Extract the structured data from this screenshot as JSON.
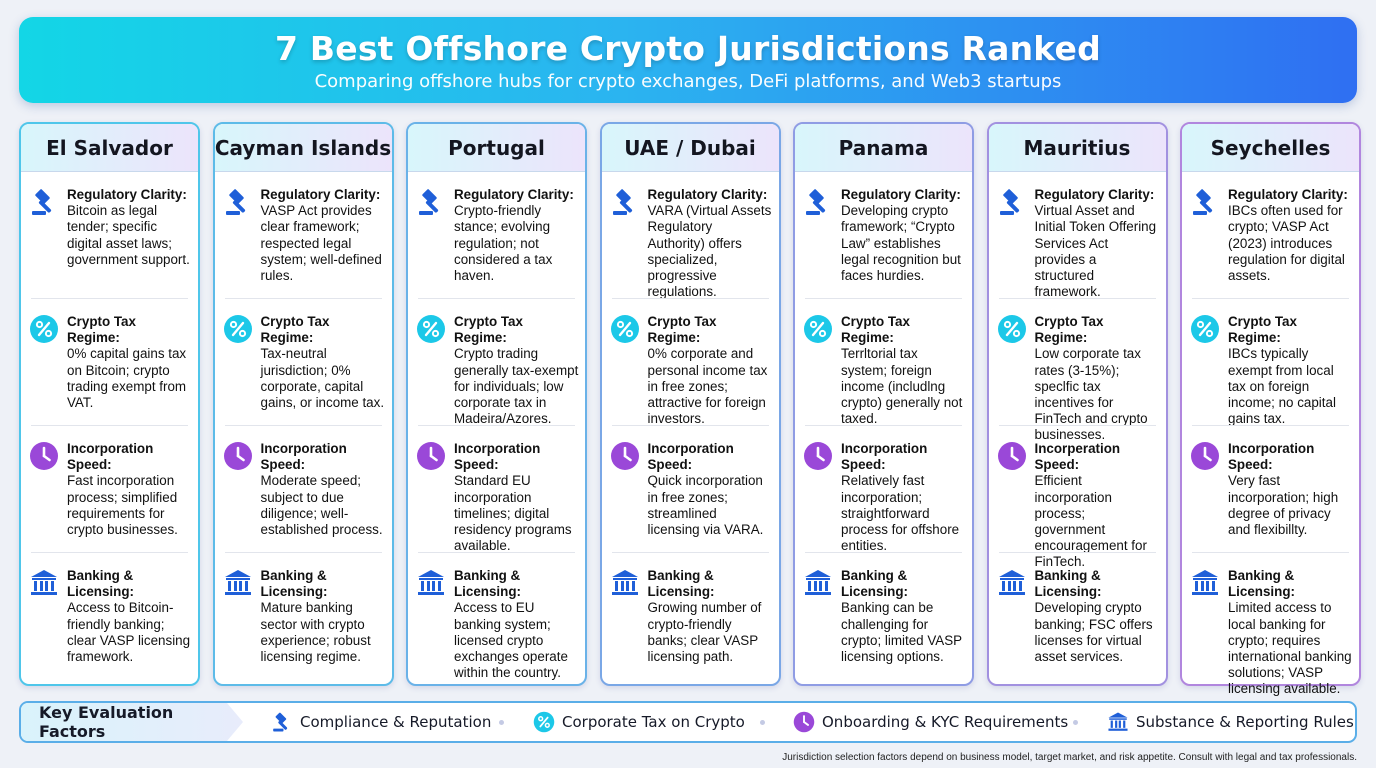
{
  "header": {
    "title": "7 Best Offshore Crypto Jurisdictions Ranked",
    "subtitle": "Comparing offshore hubs for crypto exchanges, DeFi platforms, and Web3 startups"
  },
  "jurisdictions": [
    {
      "name": "El Salvador",
      "sections": [
        {
          "heading": "Regulatory Clarity:",
          "body": "Bitcoin as legal tender; specific digital asset laws; government support.",
          "icon": "gavel-icon"
        },
        {
          "heading": "Crypto Tax Regime:",
          "body": "0% capital gains tax on Bitcoin; crypto trading exempt from VAT.",
          "icon": "percent-icon"
        },
        {
          "heading": "Incorporation Speed:",
          "body": "Fast incorporation process; simplified requirements for crypto businesses.",
          "icon": "clock-icon"
        },
        {
          "heading": "Banking & Licensing:",
          "body": "Access to Bitcoin-friendly banking; clear VASP licensing framework.",
          "icon": "bank-icon"
        }
      ]
    },
    {
      "name": "Cayman Islands",
      "sections": [
        {
          "heading": "Regulatory Clarity:",
          "body": "VASP Act provides clear framework; respected legal system; well-defined rules.",
          "icon": "gavel-icon"
        },
        {
          "heading": "Crypto Tax Regime:",
          "body": "Tax-neutral jurisdiction; 0% corporate, capital gains, or income tax.",
          "icon": "percent-icon"
        },
        {
          "heading": "Incorporation Speed:",
          "body": "Moderate speed; subject to due diligence; well-established process.",
          "icon": "clock-icon"
        },
        {
          "heading": "Banking & Licensing:",
          "body": "Mature banking sector with crypto experience; robust licensing regime.",
          "icon": "bank-icon"
        }
      ]
    },
    {
      "name": "Portugal",
      "sections": [
        {
          "heading": "Regulatory Clarity:",
          "body": "Crypto-friendly stance; evolving regulation; not considered a tax haven.",
          "icon": "gavel-icon"
        },
        {
          "heading": "Crypto Tax Regime:",
          "body": "Crypto trading generally tax-exempt for individuals; low corporate tax in Madeira/Azores.",
          "icon": "percent-icon"
        },
        {
          "heading": "Incorporation Speed:",
          "body": "Standard EU incorporation timelines; digital residency programs available.",
          "icon": "clock-icon"
        },
        {
          "heading": "Banking & Licensing:",
          "body": "Access to EU banking system; licensed crypto exchanges operate within the country.",
          "icon": "bank-icon"
        }
      ]
    },
    {
      "name": "UAE / Dubai",
      "sections": [
        {
          "heading": "Regulatory Clarity:",
          "body": "VARA (Virtual Assets Regulatory Authority) offers specialized, progressive regulations.",
          "icon": "gavel-icon"
        },
        {
          "heading": "Crypto Tax Regime:",
          "body": "0% corporate and personal income tax in free zones; attractive for foreign investors.",
          "icon": "percent-icon"
        },
        {
          "heading": "Incorporation Speed:",
          "body": "Quick incorporation in free zones; streamlined licensing via VARA.",
          "icon": "clock-icon"
        },
        {
          "heading": "Banking & Licensing:",
          "body": "Growing number of crypto-friendly banks; clear VASP licensing path.",
          "icon": "bank-icon"
        }
      ]
    },
    {
      "name": "Panama",
      "sections": [
        {
          "heading": "Regulatory Clarity:",
          "body": "Developing crypto framework; “Crypto Law” establishes legal recognition but faces hurdies.",
          "icon": "gavel-icon"
        },
        {
          "heading": "Crypto Tax Regime:",
          "body": "Terrltorial tax system; foreign income (includlng crypto) generally not taxed.",
          "icon": "percent-icon"
        },
        {
          "heading": "Incorporation Speed:",
          "body": "Relatively fast incorporation; straightforward process for offshore entities.",
          "icon": "clock-icon"
        },
        {
          "heading": "Banking & Licensing:",
          "body": "Banking can be challenging for crypto; limited VASP licensing options.",
          "icon": "bank-icon"
        }
      ]
    },
    {
      "name": "Mauritius",
      "sections": [
        {
          "heading": "Regulatory Clarity:",
          "body": "Virtual Asset and Initial Token Offering Services Act provides a structured framework.",
          "icon": "gavel-icon"
        },
        {
          "heading": "Crypto Tax Regime:",
          "body": "Low corporate tax rates (3-15%); speclfic tax incentives for FinTech and crypto businesses.",
          "icon": "percent-icon"
        },
        {
          "heading": "Incorperation Speed:",
          "body": "Efficient incorporation process; government encouragement for FinTech.",
          "icon": "clock-icon"
        },
        {
          "heading": "Banking & Licensing:",
          "body": "Developing crypto banking; FSC offers licenses for virtual asset services.",
          "icon": "bank-icon"
        }
      ]
    },
    {
      "name": "Seychelles",
      "sections": [
        {
          "heading": "Regulatory Clarity:",
          "body": "IBCs often used for crypto; VASP Act (2023) introduces regulation for digital assets.",
          "icon": "gavel-icon"
        },
        {
          "heading": "Crypto Tax Regime:",
          "body": "IBCs typically exempt from local tax on foreign income; no capital gains tax.",
          "icon": "percent-icon"
        },
        {
          "heading": "Incorporation Speed:",
          "body": "Very fast incorporation; high degree of privacy and flexibillty.",
          "icon": "clock-icon"
        },
        {
          "heading": "Banking & Licensing:",
          "body": "Limited access to local banking for crypto; requires international banking solutions; VASP licensing available.",
          "icon": "bank-icon"
        }
      ]
    }
  ],
  "footer": {
    "key_label": "Key Evaluation Factors",
    "factors": [
      {
        "label": "Compliance & Reputation",
        "icon": "gavel-icon"
      },
      {
        "label": "Corporate Tax on Crypto",
        "icon": "percent-icon"
      },
      {
        "label": "Onboarding & KYC Requirements",
        "icon": "clock-icon"
      },
      {
        "label": "Substance & Reporting Rules",
        "icon": "bank-icon"
      }
    ],
    "note": "Jurisdiction selection factors depend on business model, target market, and risk appetite. Consult with legal and tax professionals."
  },
  "colors": {
    "gavel": "#1f5fd8",
    "percent": "#1cc8e8",
    "clock": "#9a48d8",
    "bank": "#1f5fd8"
  }
}
